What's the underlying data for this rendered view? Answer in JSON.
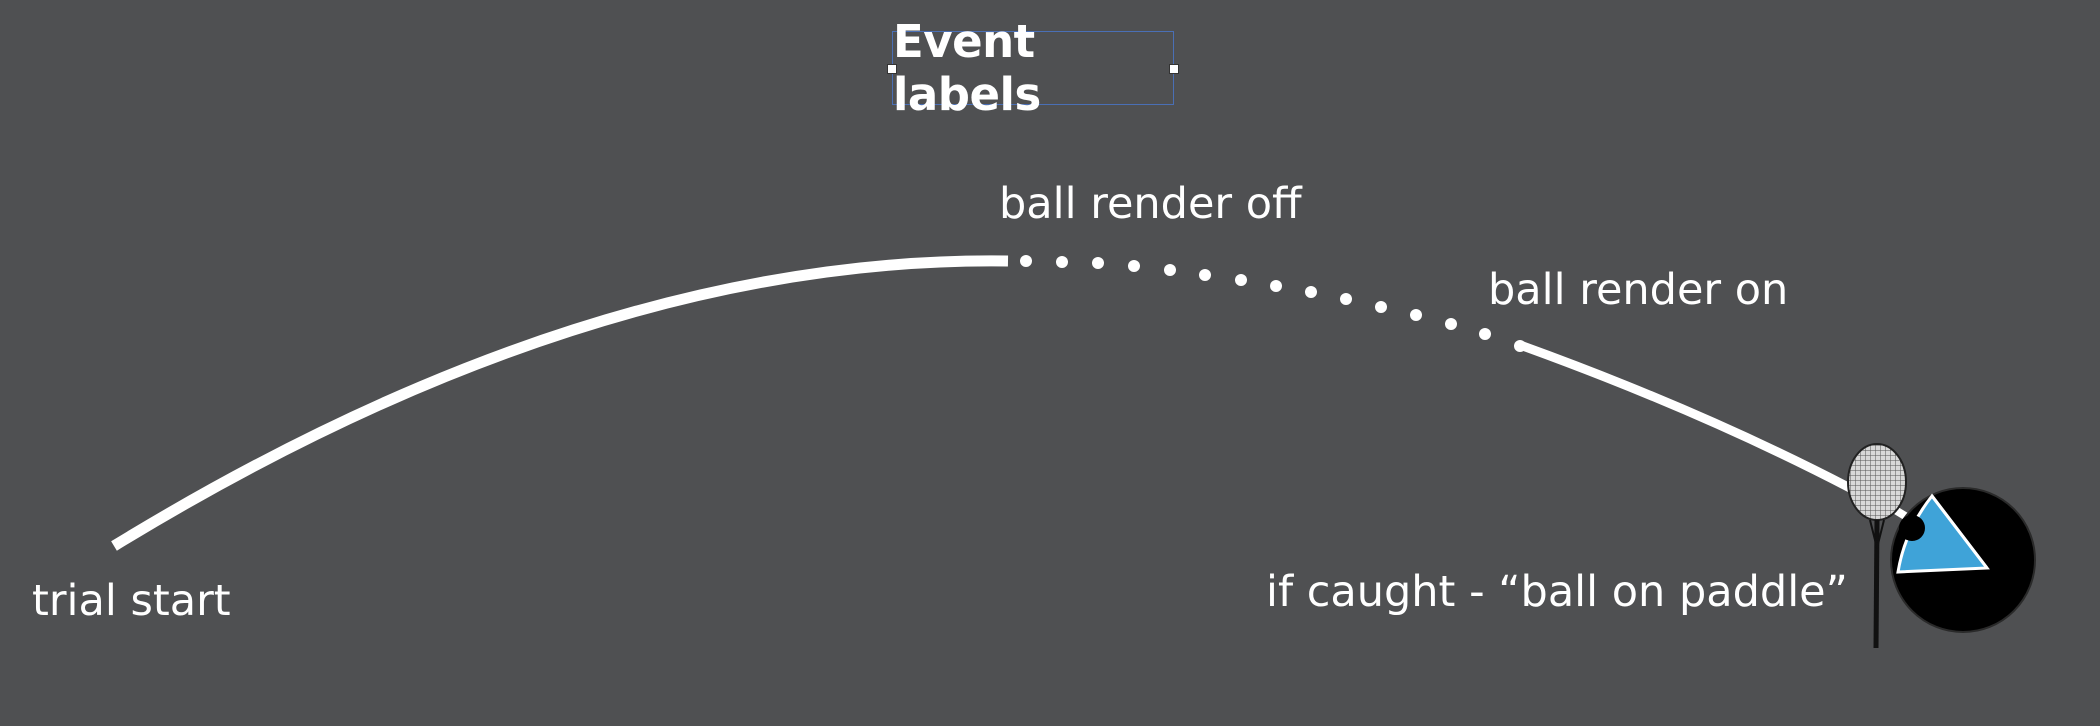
{
  "title": "Event labels",
  "labels": {
    "trial_start": "trial start",
    "ball_render_off": "ball render off",
    "ball_render_on": "ball render on",
    "ball_on_paddle": "if caught - “ball on paddle”"
  },
  "icons": {
    "paddle": "racket-icon",
    "catcher": "pie-catcher-icon"
  },
  "colors": {
    "background": "#4f5052",
    "trajectory": "#ffffff",
    "wedge": "#3fa3d8",
    "catcher": "#000000",
    "selection_box": "#4a6fb5"
  }
}
